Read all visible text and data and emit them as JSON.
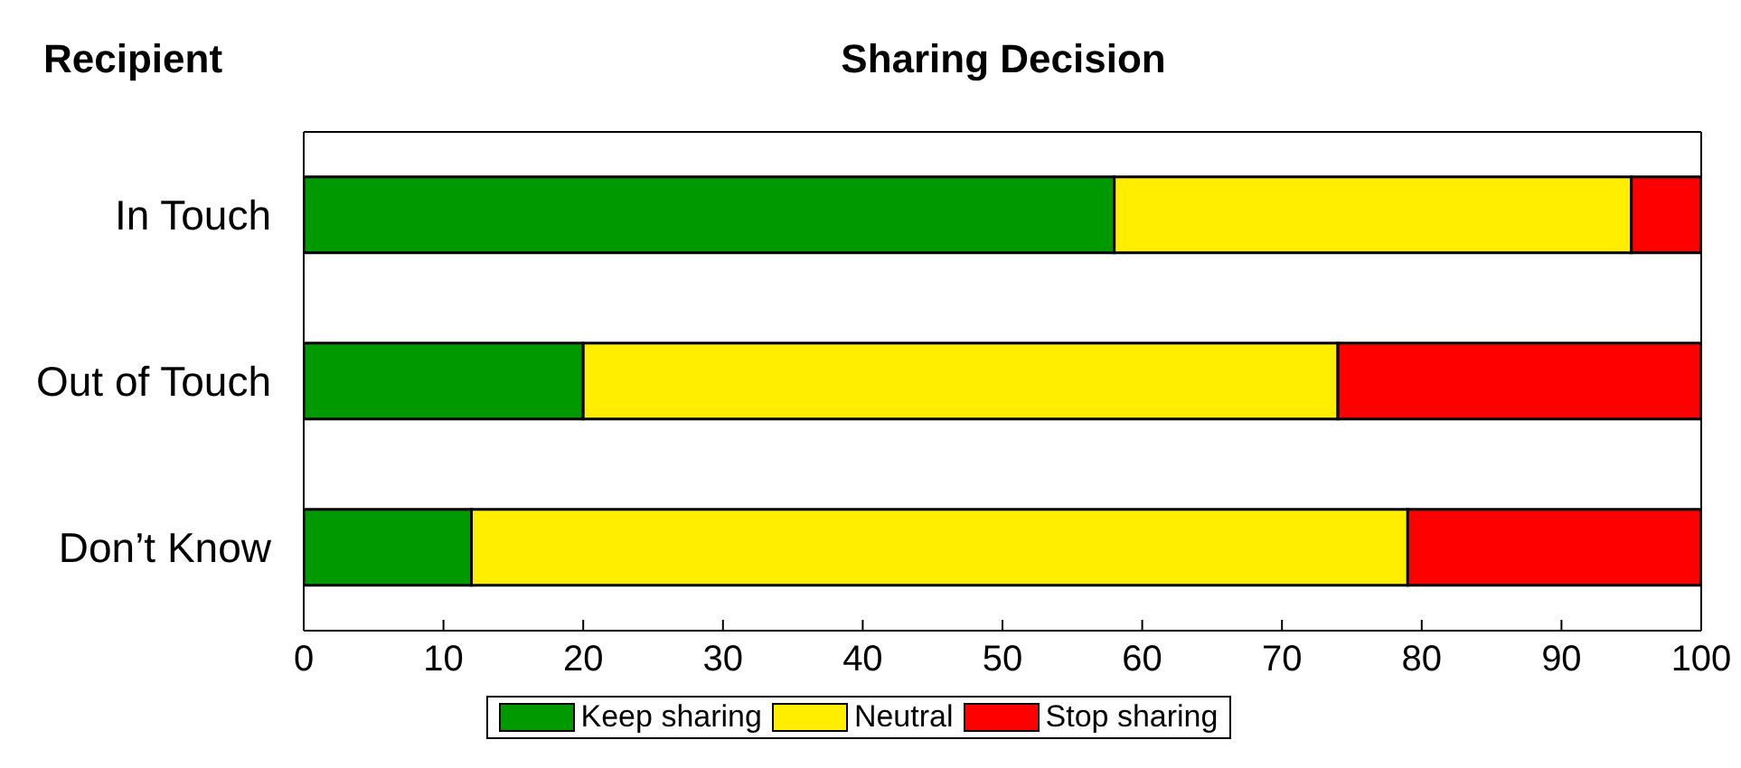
{
  "chart_data": {
    "type": "bar",
    "orientation": "horizontal",
    "stacked": true,
    "title": "Sharing Decision",
    "ylabel": "Recipient",
    "categories": [
      "In Touch",
      "Out of Touch",
      "Don’t Know"
    ],
    "series": [
      {
        "name": "Keep sharing",
        "color": "#009900",
        "values": [
          58,
          20,
          12
        ]
      },
      {
        "name": "Neutral",
        "color": "#ffee00",
        "values": [
          37,
          54,
          67
        ]
      },
      {
        "name": "Stop sharing",
        "color": "#ff0000",
        "values": [
          5,
          26,
          21
        ]
      }
    ],
    "xlim": [
      0,
      100
    ],
    "xticks": [
      0,
      10,
      20,
      30,
      40,
      50,
      60,
      70,
      80,
      90,
      100
    ],
    "legend": "bottom"
  }
}
